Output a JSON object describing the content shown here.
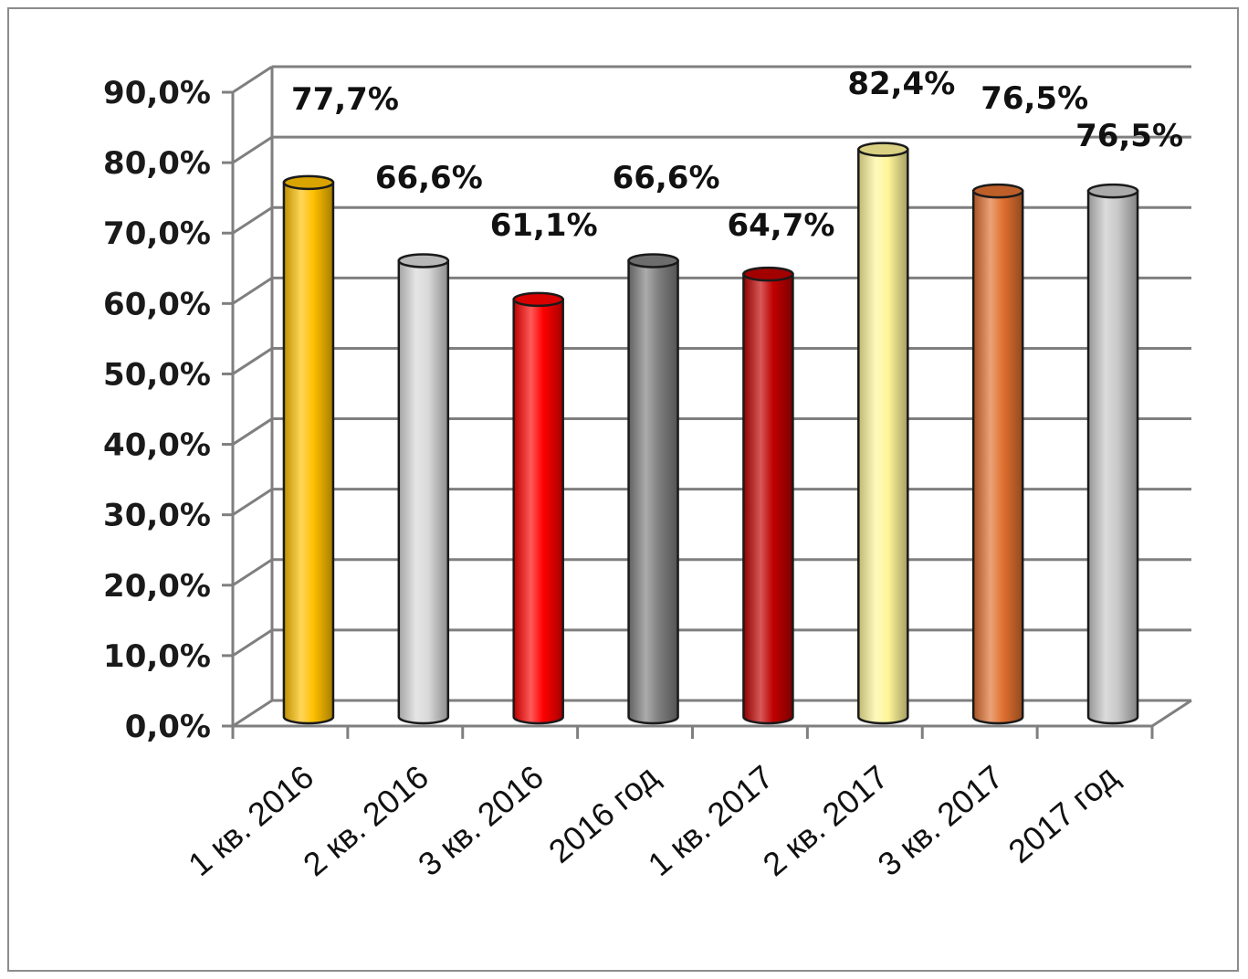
{
  "chart_data": {
    "type": "bar",
    "title": "",
    "xlabel": "",
    "ylabel": "",
    "ylim": [
      0,
      90
    ],
    "y_ticks": [
      "0,0%",
      "10,0%",
      "20,0%",
      "30,0%",
      "40,0%",
      "50,0%",
      "60,0%",
      "70,0%",
      "80,0%",
      "90,0%"
    ],
    "grid": true,
    "legend": "none",
    "categories": [
      "1 кв. 2016",
      "2 кв. 2016",
      "3 кв. 2016",
      "2016 год",
      "1 кв. 2017",
      "2 кв. 2017",
      "3 кв. 2017",
      "2017 год"
    ],
    "values": [
      77.7,
      66.6,
      61.1,
      66.6,
      64.7,
      82.4,
      76.5,
      76.5
    ],
    "data_labels": [
      "77,7%",
      "66,6%",
      "61,1%",
      "66,6%",
      "64,7%",
      "82,4%",
      "76,5%",
      "76,5%"
    ],
    "colors": [
      "#FFC000",
      "#D9D9D9",
      "#FF0000",
      "#808080",
      "#C00000",
      "#FFF59A",
      "#E07030",
      "#C8C8C8"
    ]
  }
}
